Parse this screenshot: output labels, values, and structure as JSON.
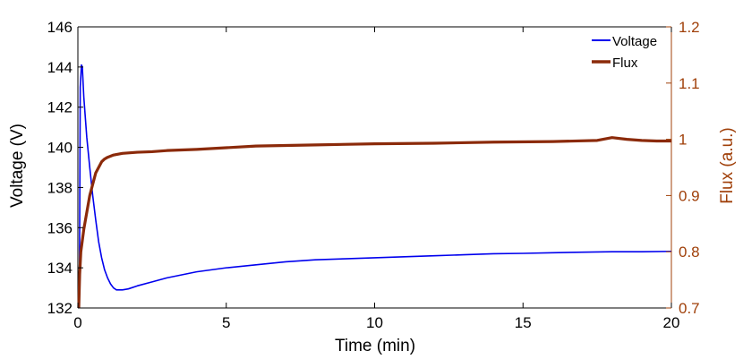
{
  "chart_data": {
    "type": "line",
    "xlabel": "Time (min)",
    "ylabel_left": "Voltage (V)",
    "ylabel_right": "Flux (a.u.)",
    "xlim": [
      0,
      20
    ],
    "ylim_left": [
      132,
      146
    ],
    "ylim_right": [
      0.7,
      1.2
    ],
    "x_ticks": [
      "0",
      "5",
      "10",
      "15",
      "20"
    ],
    "y_left_ticks": [
      "132",
      "134",
      "136",
      "138",
      "140",
      "142",
      "144",
      "146"
    ],
    "y_right_ticks": [
      "0.7",
      "0.8",
      "0.9",
      "1",
      "1.1",
      "1.2"
    ],
    "grid": false,
    "legend_position": "top-right",
    "colors": {
      "voltage": "#0000ee",
      "flux": "#8b2a0a",
      "right_axis": "#a0400a"
    },
    "series": [
      {
        "name": "Voltage",
        "axis": "left",
        "x": [
          0.05,
          0.08,
          0.12,
          0.15,
          0.2,
          0.3,
          0.4,
          0.5,
          0.6,
          0.7,
          0.8,
          0.9,
          1.0,
          1.1,
          1.2,
          1.3,
          1.5,
          1.7,
          2.0,
          2.5,
          3.0,
          4.0,
          5.0,
          6.0,
          7.0,
          8.0,
          9.0,
          10.0,
          11.0,
          12.0,
          13.0,
          14.0,
          15.0,
          16.0,
          17.0,
          18.0,
          19.0,
          20.0
        ],
        "y": [
          132.0,
          143.0,
          144.1,
          144.0,
          142.5,
          140.5,
          139.0,
          137.6,
          136.4,
          135.3,
          134.5,
          133.9,
          133.5,
          133.2,
          133.0,
          132.9,
          132.9,
          132.95,
          133.1,
          133.3,
          133.5,
          133.8,
          134.0,
          134.15,
          134.3,
          134.4,
          134.45,
          134.5,
          134.55,
          134.6,
          134.65,
          134.7,
          134.72,
          134.75,
          134.78,
          134.8,
          134.8,
          134.82
        ]
      },
      {
        "name": "Flux",
        "axis": "right",
        "x": [
          0.03,
          0.06,
          0.1,
          0.15,
          0.2,
          0.3,
          0.4,
          0.5,
          0.6,
          0.7,
          0.8,
          0.9,
          1.0,
          1.2,
          1.5,
          2.0,
          2.5,
          3.0,
          4.0,
          5.0,
          6.0,
          8.0,
          10.0,
          12.0,
          14.0,
          16.0,
          17.5,
          18.0,
          18.5,
          19.0,
          19.5,
          20.0
        ],
        "y": [
          0.7,
          0.76,
          0.8,
          0.82,
          0.84,
          0.87,
          0.9,
          0.92,
          0.94,
          0.95,
          0.96,
          0.965,
          0.968,
          0.972,
          0.975,
          0.977,
          0.978,
          0.98,
          0.982,
          0.985,
          0.988,
          0.99,
          0.992,
          0.993,
          0.995,
          0.996,
          0.998,
          1.003,
          1.0,
          0.998,
          0.997,
          0.997
        ]
      }
    ]
  }
}
